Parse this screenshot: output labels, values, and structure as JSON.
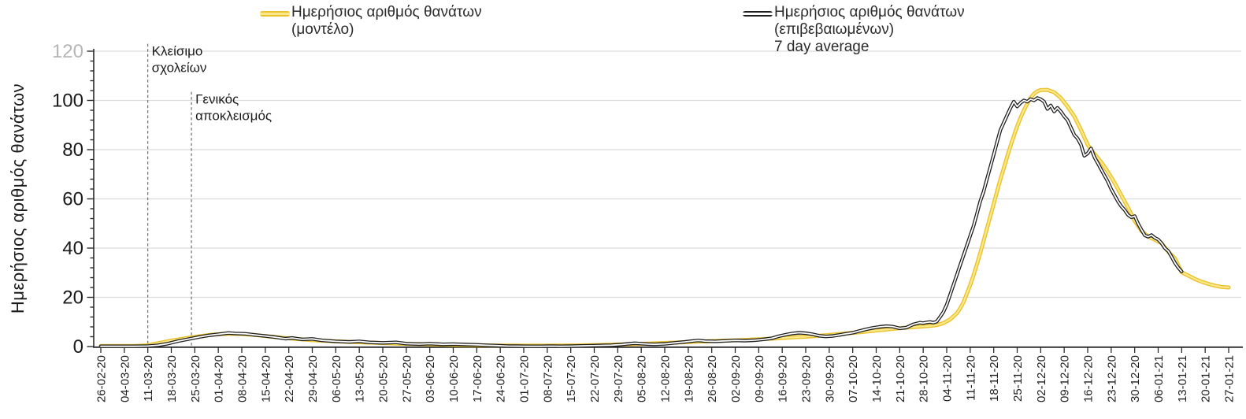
{
  "legend": [
    {
      "series": "model",
      "label_lines": [
        "Ημερήσιος αριθμός θανάτων",
        "(μοντέλο)"
      ],
      "color": "#e9c22d",
      "inner_color": "#fbe88a"
    },
    {
      "series": "confirmed",
      "label_lines": [
        "Ημερήσιος αριθμός θανάτων",
        "(επιβεβαιωμένων)",
        "7 day average"
      ],
      "color": "#1f1f1f",
      "inner_color": "#ffffff"
    }
  ],
  "colors": {
    "grid": "#dcdcdc",
    "axis": "#2b2b2b",
    "tick": "#2b2b2b",
    "gray_y_tick_label": "#b5b5b5",
    "annotation_line": "#5f5f5f",
    "model_outer": "#e9c22d",
    "model_inner": "#fbe88a",
    "confirmed_outer": "#1f1f1f",
    "confirmed_inner": "#ffffff"
  },
  "chart_data": {
    "type": "line",
    "title": "",
    "xlabel": "",
    "ylabel": "Ημερήσιος αριθμός θανάτων",
    "ylim": [
      0,
      120
    ],
    "y_ticks": [
      0,
      20,
      40,
      60,
      80,
      100,
      120
    ],
    "gray_y_tick": 120,
    "y_minor_step": 4,
    "grid": true,
    "legend_position": "top",
    "days_per_tick": 7,
    "x_tick_labels": [
      "26-02-20",
      "04-03-20",
      "11-03-20",
      "18-03-20",
      "25-03-20",
      "01-04-20",
      "08-04-20",
      "15-04-20",
      "22-04-20",
      "29-04-20",
      "06-05-20",
      "13-05-20",
      "20-05-20",
      "27-05-20",
      "03-06-20",
      "10-06-20",
      "17-06-20",
      "24-06-20",
      "01-07-20",
      "08-07-20",
      "15-07-20",
      "22-07-20",
      "29-07-20",
      "05-08-20",
      "12-08-20",
      "19-08-20",
      "26-08-20",
      "02-09-20",
      "09-09-20",
      "16-09-20",
      "23-09-20",
      "30-09-20",
      "07-10-20",
      "14-10-20",
      "21-10-20",
      "28-10-20",
      "04-11-20",
      "11-11-20",
      "18-11-20",
      "25-11-20",
      "02-12-20",
      "09-12-20",
      "16-12-20",
      "23-12-20",
      "30-12-20",
      "06-01-21",
      "13-01-21",
      "20-01-21",
      "27-01-21"
    ],
    "annotations": [
      {
        "label_lines": [
          "Κλείσιμο",
          "σχολείων"
        ],
        "day": 14,
        "at_tick": "11-03-20",
        "line_top_value": 123
      },
      {
        "label_lines": [
          "Γενικός",
          "αποκλεισμός"
        ],
        "day": 27,
        "at_tick": "25-03-20",
        "line_top_value": 103.5
      }
    ],
    "series": [
      {
        "name": "Ημερήσιος αριθμός θανάτων (μοντέλο)",
        "style": "model",
        "points": [
          [
            0,
            0.25
          ],
          [
            10,
            0.25
          ],
          [
            13,
            0.4
          ],
          [
            15,
            0.8
          ],
          [
            18,
            1.6
          ],
          [
            21,
            2.4
          ],
          [
            24,
            3.1
          ],
          [
            27,
            3.7
          ],
          [
            30,
            4.3
          ],
          [
            33,
            4.8
          ],
          [
            36,
            5.1
          ],
          [
            39,
            5.2
          ],
          [
            42,
            5.1
          ],
          [
            45,
            4.8
          ],
          [
            48,
            4.4
          ],
          [
            51,
            4.0
          ],
          [
            54,
            3.6
          ],
          [
            57,
            3.2
          ],
          [
            60,
            2.9
          ],
          [
            63,
            2.6
          ],
          [
            67,
            2.3
          ],
          [
            70,
            2.1
          ],
          [
            74,
            1.9
          ],
          [
            78,
            1.7
          ],
          [
            82,
            1.5
          ],
          [
            86,
            1.3
          ],
          [
            91,
            1.1
          ],
          [
            96,
            0.95
          ],
          [
            101,
            0.8
          ],
          [
            106,
            0.65
          ],
          [
            111,
            0.55
          ],
          [
            116,
            0.45
          ],
          [
            121,
            0.4
          ],
          [
            126,
            0.35
          ],
          [
            131,
            0.35
          ],
          [
            136,
            0.4
          ],
          [
            141,
            0.45
          ],
          [
            146,
            0.55
          ],
          [
            151,
            0.7
          ],
          [
            156,
            0.9
          ],
          [
            161,
            1.1
          ],
          [
            166,
            1.35
          ],
          [
            171,
            1.6
          ],
          [
            176,
            1.9
          ],
          [
            181,
            2.15
          ],
          [
            186,
            2.4
          ],
          [
            191,
            2.65
          ],
          [
            196,
            2.95
          ],
          [
            201,
            3.3
          ],
          [
            206,
            3.7
          ],
          [
            211,
            4.1
          ],
          [
            216,
            4.6
          ],
          [
            221,
            5.2
          ],
          [
            226,
            5.8
          ],
          [
            231,
            6.5
          ],
          [
            236,
            7.2
          ],
          [
            241,
            7.8
          ],
          [
            244,
            8.1
          ],
          [
            247,
            8.4
          ],
          [
            249,
            8.7
          ],
          [
            251,
            9.5
          ],
          [
            253,
            11
          ],
          [
            255,
            13.5
          ],
          [
            256,
            15.5
          ],
          [
            257,
            18
          ],
          [
            258,
            21.5
          ],
          [
            259,
            25
          ],
          [
            260,
            29
          ],
          [
            261,
            33.5
          ],
          [
            262,
            38
          ],
          [
            263,
            43
          ],
          [
            264,
            48
          ],
          [
            265,
            53
          ],
          [
            266,
            58
          ],
          [
            267,
            63
          ],
          [
            268,
            68
          ],
          [
            269,
            72.5
          ],
          [
            270,
            77
          ],
          [
            271,
            81.5
          ],
          [
            272,
            85.5
          ],
          [
            273,
            89.5
          ],
          [
            274,
            93
          ],
          [
            275,
            96
          ],
          [
            276,
            98.7
          ],
          [
            277,
            101
          ],
          [
            278,
            102.7
          ],
          [
            279,
            103.7
          ],
          [
            280,
            104.2
          ],
          [
            282,
            104.3
          ],
          [
            284,
            103.3
          ],
          [
            286,
            101
          ],
          [
            288,
            97.5
          ],
          [
            290,
            93.5
          ],
          [
            292,
            88
          ],
          [
            293,
            85
          ],
          [
            294,
            82
          ],
          [
            295,
            80
          ],
          [
            296,
            78.3
          ],
          [
            298,
            75
          ],
          [
            300,
            71
          ],
          [
            302,
            66.5
          ],
          [
            304,
            61.5
          ],
          [
            306,
            56.5
          ],
          [
            308,
            51
          ],
          [
            310,
            47
          ],
          [
            312,
            44.7
          ],
          [
            314,
            43.4
          ],
          [
            316,
            42
          ],
          [
            318,
            38.5
          ],
          [
            320,
            35.8
          ],
          [
            322,
            30.2
          ],
          [
            324,
            28.8
          ],
          [
            326,
            27.4
          ],
          [
            328,
            26.3
          ],
          [
            330,
            25.4
          ],
          [
            332,
            24.7
          ],
          [
            334,
            24.2
          ],
          [
            336,
            24
          ]
        ]
      },
      {
        "name": "Ημερήσιος αριθμός θανάτων (επιβεβαιωμένων) 7 day average",
        "style": "confirmed",
        "points": [
          [
            0,
            0.1
          ],
          [
            10,
            0.1
          ],
          [
            14,
            0.2
          ],
          [
            17,
            0.5
          ],
          [
            20,
            1.2
          ],
          [
            23,
            2.2
          ],
          [
            26,
            3.0
          ],
          [
            29,
            3.8
          ],
          [
            32,
            4.5
          ],
          [
            35,
            5.0
          ],
          [
            38,
            5.5
          ],
          [
            40,
            5.3
          ],
          [
            43,
            5.2
          ],
          [
            46,
            4.7
          ],
          [
            49,
            4.3
          ],
          [
            52,
            3.8
          ],
          [
            55,
            3.2
          ],
          [
            57,
            3.5
          ],
          [
            60,
            2.9
          ],
          [
            63,
            3.1
          ],
          [
            66,
            2.5
          ],
          [
            70,
            2.1
          ],
          [
            74,
            1.9
          ],
          [
            77,
            2.1
          ],
          [
            80,
            1.7
          ],
          [
            84,
            1.5
          ],
          [
            88,
            1.7
          ],
          [
            91,
            1.2
          ],
          [
            95,
            1.0
          ],
          [
            98,
            1.2
          ],
          [
            102,
            0.9
          ],
          [
            105,
            1.0
          ],
          [
            109,
            0.8
          ],
          [
            112,
            0.7
          ],
          [
            115,
            0.5
          ],
          [
            118,
            0.4
          ],
          [
            121,
            0.2
          ],
          [
            124,
            0.15
          ],
          [
            127,
            0.1
          ],
          [
            131,
            0.1
          ],
          [
            134,
            0.15
          ],
          [
            137,
            0.1
          ],
          [
            140,
            0.15
          ],
          [
            143,
            0.25
          ],
          [
            146,
            0.35
          ],
          [
            149,
            0.45
          ],
          [
            152,
            0.55
          ],
          [
            155,
            0.8
          ],
          [
            157,
            1.1
          ],
          [
            159,
            1.35
          ],
          [
            161,
            1.2
          ],
          [
            163,
            1.0
          ],
          [
            165,
            0.9
          ],
          [
            168,
            1.1
          ],
          [
            171,
            1.5
          ],
          [
            174,
            1.9
          ],
          [
            176,
            2.2
          ],
          [
            178,
            2.45
          ],
          [
            180,
            2.2
          ],
          [
            183,
            2.1
          ],
          [
            186,
            2.3
          ],
          [
            189,
            2.5
          ],
          [
            192,
            2.4
          ],
          [
            195,
            2.6
          ],
          [
            198,
            3.0
          ],
          [
            200,
            3.4
          ],
          [
            202,
            4.2
          ],
          [
            204,
            4.8
          ],
          [
            206,
            5.3
          ],
          [
            208,
            5.6
          ],
          [
            210,
            5.4
          ],
          [
            212,
            5.0
          ],
          [
            214,
            4.4
          ],
          [
            216,
            4.1
          ],
          [
            218,
            4.3
          ],
          [
            220,
            4.7
          ],
          [
            222,
            5.2
          ],
          [
            224,
            5.6
          ],
          [
            226,
            6.3
          ],
          [
            228,
            7.0
          ],
          [
            230,
            7.6
          ],
          [
            232,
            8.0
          ],
          [
            234,
            8.3
          ],
          [
            236,
            8.1
          ],
          [
            238,
            7.4
          ],
          [
            240,
            7.7
          ],
          [
            242,
            9.0
          ],
          [
            244,
            9.7
          ],
          [
            245,
            9.5
          ],
          [
            246,
            9.8
          ],
          [
            247,
            10.0
          ],
          [
            248,
            9.7
          ],
          [
            249,
            10.1
          ],
          [
            250,
            12
          ],
          [
            251,
            14
          ],
          [
            252,
            17
          ],
          [
            253,
            21
          ],
          [
            254,
            25
          ],
          [
            255,
            29
          ],
          [
            256,
            33
          ],
          [
            257,
            37
          ],
          [
            258,
            41
          ],
          [
            259,
            45
          ],
          [
            260,
            49
          ],
          [
            261,
            54
          ],
          [
            262,
            59
          ],
          [
            263,
            63
          ],
          [
            264,
            68
          ],
          [
            265,
            73
          ],
          [
            266,
            78
          ],
          [
            267,
            83
          ],
          [
            268,
            88
          ],
          [
            269,
            91
          ],
          [
            270,
            94
          ],
          [
            271,
            97
          ],
          [
            272,
            99.5
          ],
          [
            273,
            97.5
          ],
          [
            274,
            99
          ],
          [
            275,
            100
          ],
          [
            276,
            99.5
          ],
          [
            277,
            100.5
          ],
          [
            278,
            100
          ],
          [
            279,
            101
          ],
          [
            280,
            100.5
          ],
          [
            281,
            99.5
          ],
          [
            282,
            96.5
          ],
          [
            283,
            98
          ],
          [
            284,
            95.5
          ],
          [
            285,
            97
          ],
          [
            286,
            95.5
          ],
          [
            287,
            93.5
          ],
          [
            288,
            92
          ],
          [
            289,
            89
          ],
          [
            290,
            86
          ],
          [
            291,
            84.5
          ],
          [
            292,
            82
          ],
          [
            293,
            77.5
          ],
          [
            294,
            78.5
          ],
          [
            295,
            80.5
          ],
          [
            296,
            77
          ],
          [
            297,
            74.5
          ],
          [
            298,
            72
          ],
          [
            299,
            69.5
          ],
          [
            300,
            67
          ],
          [
            301,
            64
          ],
          [
            302,
            61.5
          ],
          [
            303,
            59
          ],
          [
            304,
            57
          ],
          [
            305,
            55.5
          ],
          [
            306,
            53.5
          ],
          [
            307,
            52.5
          ],
          [
            308,
            53
          ],
          [
            309,
            50
          ],
          [
            310,
            47.5
          ],
          [
            311,
            45.2
          ],
          [
            312,
            44.6
          ],
          [
            313,
            45.3
          ],
          [
            314,
            44.2
          ],
          [
            315,
            43.5
          ],
          [
            316,
            42
          ],
          [
            317,
            40
          ],
          [
            318,
            38.8
          ],
          [
            319,
            36.5
          ],
          [
            320,
            34
          ],
          [
            321,
            32
          ],
          [
            322,
            30.5
          ]
        ]
      }
    ]
  }
}
